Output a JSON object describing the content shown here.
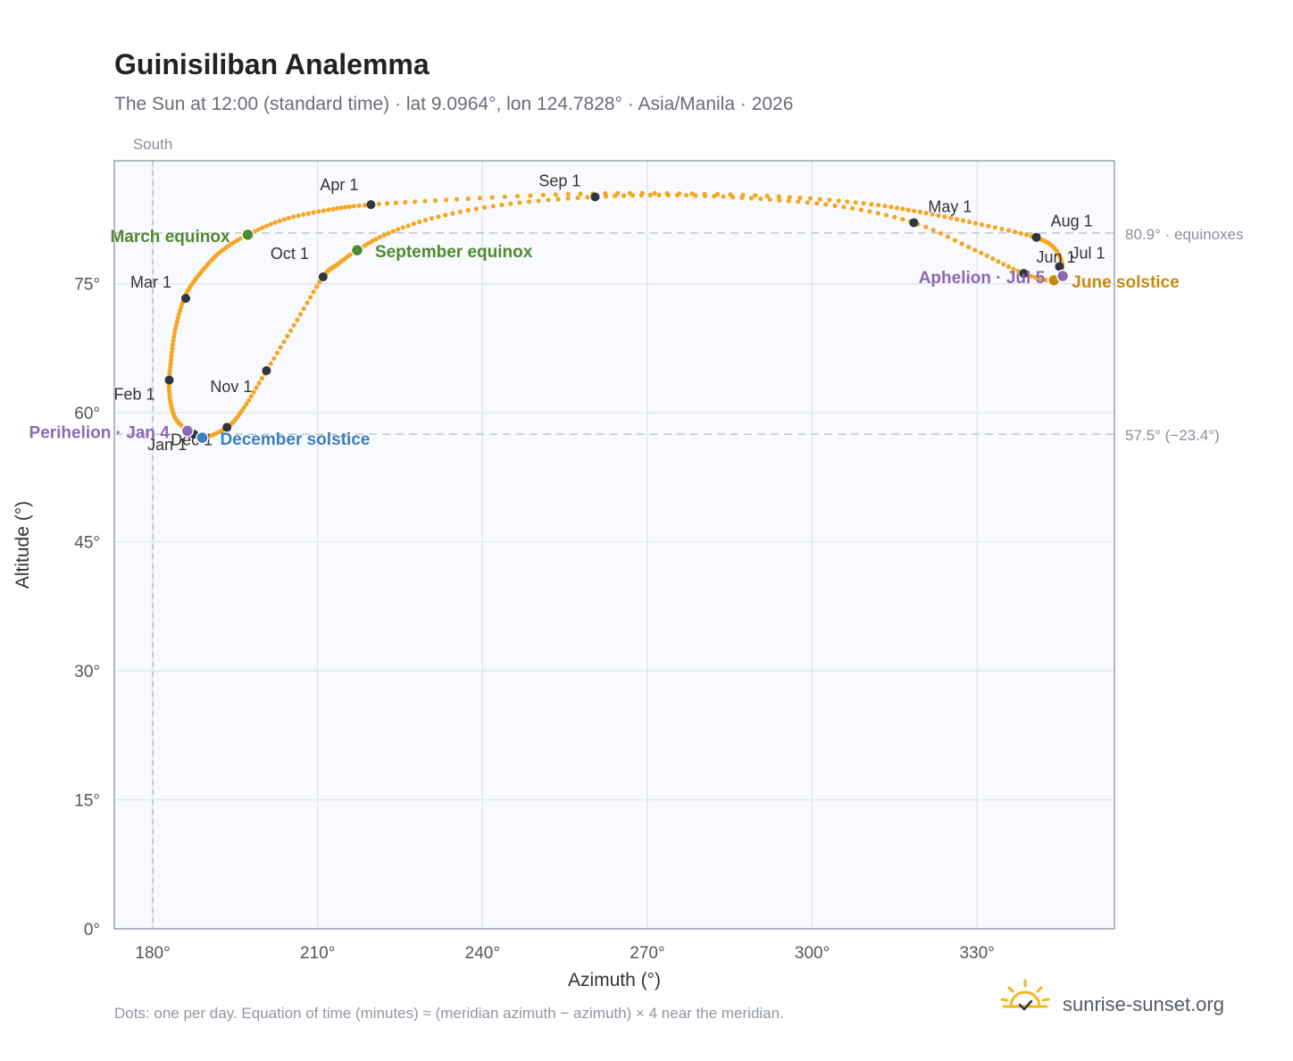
{
  "title": "Guinisiliban Analemma",
  "subtitle": "The Sun at 12:00 (standard time) · lat 9.0964°, lon 124.7828° · Asia/Manila · 2026",
  "footnote": "Dots: one per day. Equation of time (minutes) ≈ (meridian azimuth − azimuth) × 4 near the meridian.",
  "brand": "sunrise-sunset.org",
  "colors": {
    "curve": "#f5a623",
    "month_marker": "#2f3640",
    "equinox": "#4e8a2f",
    "june_solstice": "#c98a0c",
    "december_solstice": "#3a7ebf",
    "apsis": "#8e67b5",
    "plot_bg": "#f8fafd",
    "grid": "#e3e7ee",
    "frame": "#9aa3b2"
  },
  "chart_data": {
    "type": "scatter",
    "title": "Guinisiliban Analemma",
    "xlabel": "Azimuth (°)",
    "ylabel": "Altitude (°)",
    "xlim": [
      173,
      355
    ],
    "ylim": [
      0,
      89.3
    ],
    "x_ticks": [
      {
        "value": 180,
        "label": "180°"
      },
      {
        "value": 210,
        "label": "210°"
      },
      {
        "value": 240,
        "label": "240°"
      },
      {
        "value": 270,
        "label": "270°"
      },
      {
        "value": 300,
        "label": "300°"
      },
      {
        "value": 330,
        "label": "330°"
      }
    ],
    "y_ticks": [
      {
        "value": 0,
        "label": "0°"
      },
      {
        "value": 15,
        "label": "15°"
      },
      {
        "value": 30,
        "label": "30°"
      },
      {
        "value": 45,
        "label": "45°"
      },
      {
        "value": 60,
        "label": "60°"
      },
      {
        "value": 75,
        "label": "75°"
      }
    ],
    "grid": true,
    "south_line": {
      "azimuth": 180,
      "label": "South"
    },
    "reference_lines": [
      {
        "altitude": 80.9,
        "label": "80.9° · equinoxes"
      },
      {
        "altitude": 57.5,
        "label": "57.5° (−23.4°)"
      }
    ],
    "curve_keypoints": [
      {
        "az": 186.3,
        "alt": 57.9
      },
      {
        "az": 184.0,
        "alt": 59.5
      },
      {
        "az": 183.0,
        "alt": 62.5
      },
      {
        "az": 183.3,
        "alt": 66.0
      },
      {
        "az": 184.2,
        "alt": 70.0
      },
      {
        "az": 186.0,
        "alt": 73.7
      },
      {
        "az": 189.0,
        "alt": 76.5
      },
      {
        "az": 192.5,
        "alt": 78.8
      },
      {
        "az": 197.3,
        "alt": 80.7
      },
      {
        "az": 204.0,
        "alt": 82.5
      },
      {
        "az": 212.0,
        "alt": 83.6
      },
      {
        "az": 219.7,
        "alt": 84.2
      },
      {
        "az": 235.0,
        "alt": 84.8
      },
      {
        "az": 255.0,
        "alt": 85.4
      },
      {
        "az": 275.0,
        "alt": 85.5
      },
      {
        "az": 295.0,
        "alt": 85.1
      },
      {
        "az": 310.0,
        "alt": 84.3
      },
      {
        "az": 320.0,
        "alt": 83.3
      },
      {
        "az": 330.0,
        "alt": 82.0
      },
      {
        "az": 340.0,
        "alt": 80.5
      },
      {
        "az": 344.0,
        "alt": 79.2
      },
      {
        "az": 345.5,
        "alt": 77.0
      },
      {
        "az": 344.0,
        "alt": 75.4
      },
      {
        "az": 338.5,
        "alt": 76.2
      },
      {
        "az": 330.0,
        "alt": 78.8
      },
      {
        "az": 318.5,
        "alt": 82.1
      },
      {
        "az": 305.0,
        "alt": 84.0
      },
      {
        "az": 290.0,
        "alt": 84.9
      },
      {
        "az": 275.0,
        "alt": 85.3
      },
      {
        "az": 260.5,
        "alt": 85.1
      },
      {
        "az": 245.0,
        "alt": 84.3
      },
      {
        "az": 232.0,
        "alt": 82.8
      },
      {
        "az": 223.0,
        "alt": 80.9
      },
      {
        "az": 217.2,
        "alt": 78.9
      },
      {
        "az": 213.5,
        "alt": 77.2
      },
      {
        "az": 211.0,
        "alt": 75.8
      },
      {
        "az": 206.0,
        "alt": 70.5
      },
      {
        "az": 200.7,
        "alt": 64.9
      },
      {
        "az": 196.5,
        "alt": 60.5
      },
      {
        "az": 193.5,
        "alt": 58.3
      },
      {
        "az": 189.0,
        "alt": 57.1
      },
      {
        "az": 186.3,
        "alt": 57.9
      }
    ],
    "month_markers": [
      {
        "label": "Jan 1",
        "az": 187.5,
        "alt": 57.5
      },
      {
        "label": "Feb 1",
        "az": 183.0,
        "alt": 63.8
      },
      {
        "label": "Mar 1",
        "az": 186.0,
        "alt": 73.3
      },
      {
        "label": "Apr 1",
        "az": 219.7,
        "alt": 84.2
      },
      {
        "label": "May 1",
        "az": 318.5,
        "alt": 82.1
      },
      {
        "label": "Jun 1",
        "az": 338.5,
        "alt": 76.2
      },
      {
        "label": "Jul 1",
        "az": 345.0,
        "alt": 77.0
      },
      {
        "label": "Aug 1",
        "az": 340.8,
        "alt": 80.4
      },
      {
        "label": "Sep 1",
        "az": 260.5,
        "alt": 85.1
      },
      {
        "label": "Oct 1",
        "az": 211.0,
        "alt": 75.8
      },
      {
        "label": "Nov 1",
        "az": 200.7,
        "alt": 64.9
      },
      {
        "label": "Dec 1",
        "az": 193.5,
        "alt": 58.3
      }
    ],
    "events": [
      {
        "label": "March equinox",
        "az": 197.3,
        "alt": 80.7,
        "color_key": "equinox"
      },
      {
        "label": "September equinox",
        "az": 217.2,
        "alt": 78.9,
        "color_key": "equinox"
      },
      {
        "label": "June solstice",
        "az": 344.0,
        "alt": 75.4,
        "color_key": "june_solstice"
      },
      {
        "label": "December solstice",
        "az": 189.0,
        "alt": 57.1,
        "color_key": "december_solstice"
      },
      {
        "label": "Perihelion · Jan 4",
        "az": 186.3,
        "alt": 57.9,
        "color_key": "apsis"
      },
      {
        "label": "Aphelion · Jul 5",
        "az": 345.6,
        "alt": 75.9,
        "color_key": "apsis"
      }
    ]
  }
}
